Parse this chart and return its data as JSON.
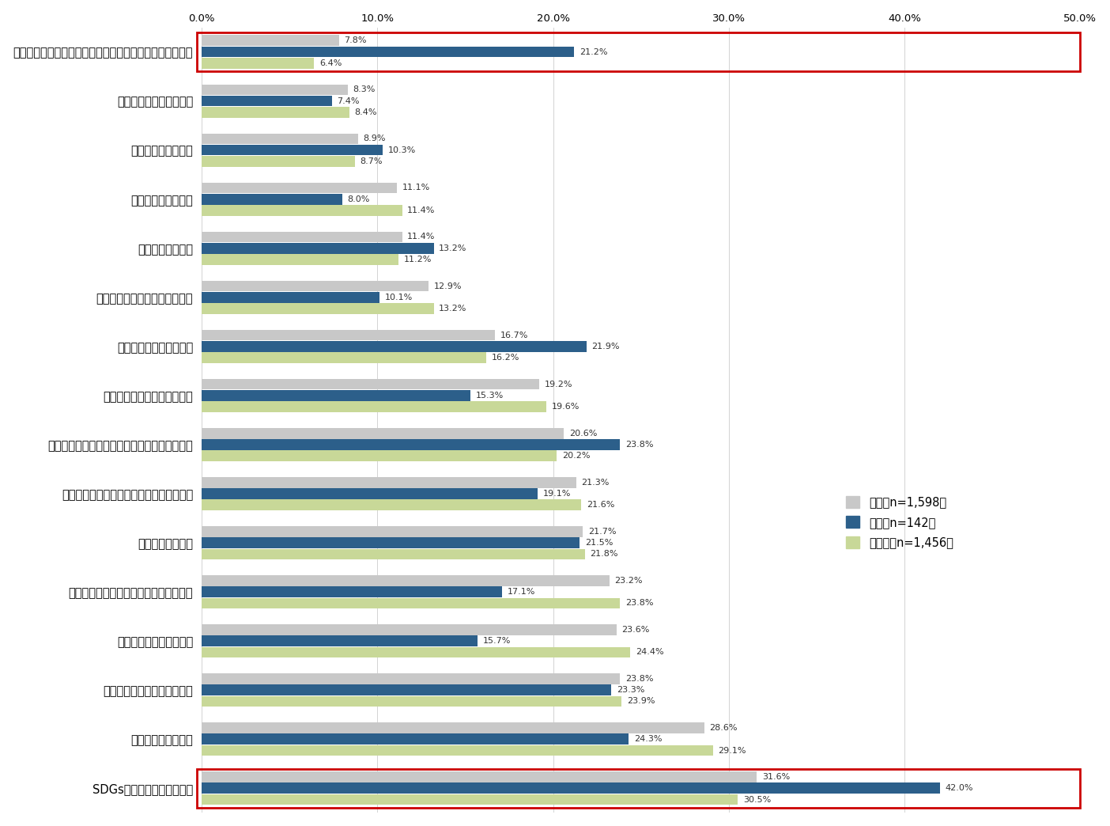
{
  "categories": [
    "ダイバーシティ＆インクルージョンに取り組んでいること",
    "女性管理職の比率の高さ",
    "業界上位であること",
    "平均勤続年数の長さ",
    "技術力があること",
    "待遇（給与や賞与など）の良さ",
    "若手の裁量が大きいこと",
    "事業内容に成長性があること",
    "男性育休に関する制度・体制が整っていること",
    "研修など人材育成の制度が整っていること",
    "福利厚生の充実度",
    "社会貢献度の高い事業を行っていること",
    "経営が安定していること",
    "ワークライフバランスの良さ",
    "社風や雰囲気の良さ",
    "SDGsに取り組んでいること"
  ],
  "zentai": [
    7.8,
    8.3,
    8.9,
    11.1,
    11.4,
    12.9,
    16.7,
    19.2,
    20.6,
    21.3,
    21.7,
    23.2,
    23.6,
    23.8,
    28.6,
    31.6
  ],
  "jojo": [
    21.2,
    7.4,
    10.3,
    8.0,
    13.2,
    10.1,
    21.9,
    15.3,
    23.8,
    19.1,
    21.5,
    17.1,
    15.7,
    23.3,
    24.3,
    42.0
  ],
  "hijojo": [
    6.4,
    8.4,
    8.7,
    11.4,
    11.2,
    13.2,
    16.2,
    19.6,
    20.2,
    21.6,
    21.8,
    23.8,
    24.4,
    23.9,
    29.1,
    30.5
  ],
  "color_zentai": "#c8c8c8",
  "color_jojo": "#2c5f8a",
  "color_hijojo": "#c8d898",
  "legend_labels": [
    "全体（n=1,598）",
    "上場（n=142）",
    "非上場（n=1,456）"
  ],
  "highlight_indices": [
    0,
    15
  ],
  "highlight_color": "#cc0000",
  "xlim": [
    0,
    50
  ],
  "xticks": [
    0,
    10,
    20,
    30,
    40,
    50
  ],
  "xtick_labels": [
    "0.0%",
    "10.0%",
    "20.0%",
    "30.0%",
    "40.0%",
    "50.0%"
  ],
  "bar_height": 0.22,
  "background_color": "#ffffff",
  "label_fontsize": 8.0,
  "ytick_fontsize": 10.5,
  "xtick_fontsize": 9.5,
  "legend_fontsize": 10.5
}
